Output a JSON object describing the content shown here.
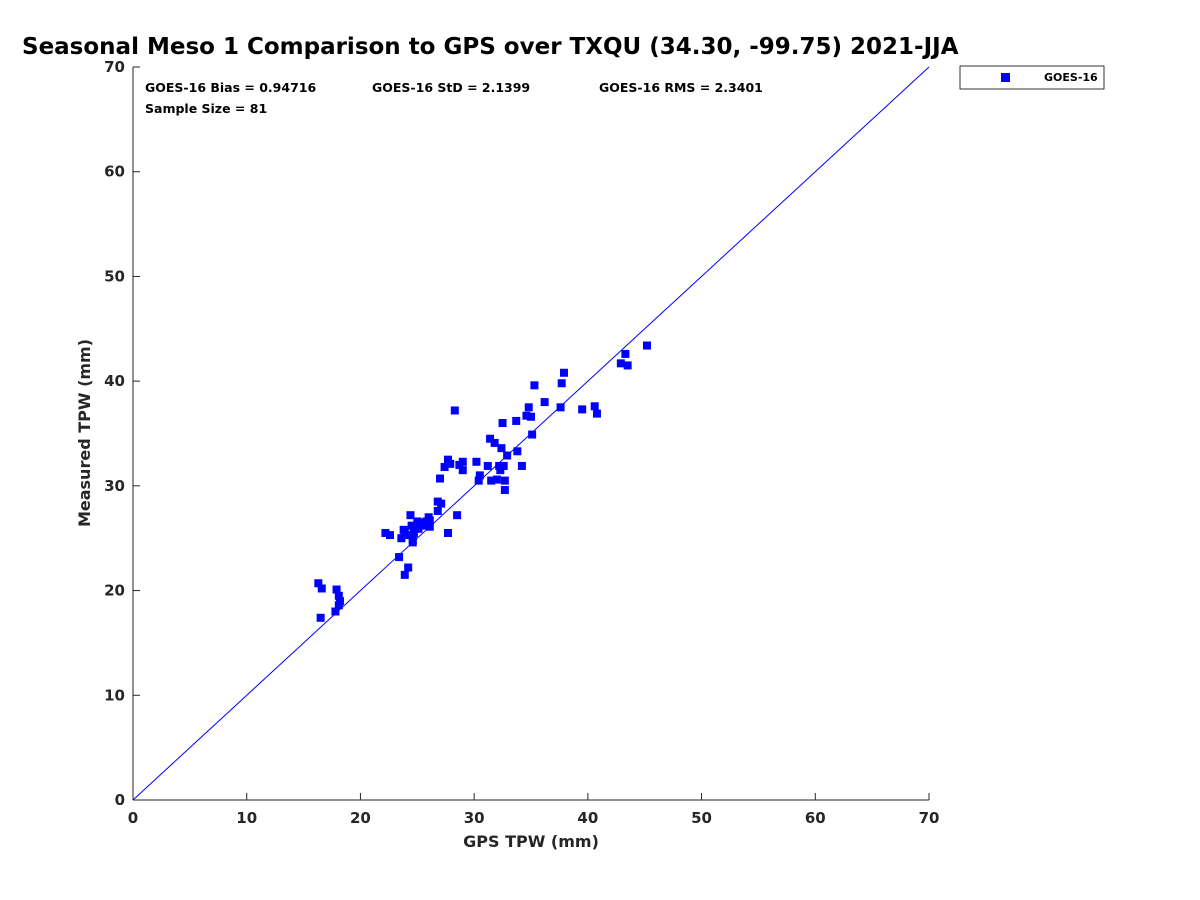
{
  "chart_data": {
    "type": "scatter",
    "title": "Seasonal Meso 1 Comparison to GPS over TXQU (34.30, -99.75) 2021-JJA",
    "xlabel": "GPS TPW (mm)",
    "ylabel": "Measured TPW (mm)",
    "xlim": [
      0,
      70
    ],
    "ylim": [
      0,
      70
    ],
    "xticks": [
      0,
      10,
      20,
      30,
      40,
      50,
      60,
      70
    ],
    "yticks": [
      0,
      10,
      20,
      30,
      40,
      50,
      60,
      70
    ],
    "grid": false,
    "legend": {
      "placement": "outside-top-right",
      "entries": [
        "GOES-16"
      ]
    },
    "stats": {
      "bias": "GOES-16 Bias = 0.94716",
      "std": "GOES-16 StD = 2.1399",
      "rms": "GOES-16 RMS = 2.3401",
      "sample_size": "Sample Size = 81"
    },
    "reference_line": {
      "from": [
        0,
        0
      ],
      "to": [
        70,
        70
      ],
      "color": "#0000ff"
    },
    "series": [
      {
        "name": "GOES-16",
        "color": "#0000ff",
        "marker": "square",
        "x": [
          16.3,
          16.5,
          16.6,
          17.8,
          17.9,
          18.1,
          18.2,
          18.1,
          22.2,
          22.6,
          23.4,
          23.6,
          23.8,
          23.9,
          24.2,
          24.3,
          24.4,
          24.5,
          24.6,
          24.7,
          24.8,
          25.0,
          25.1,
          25.4,
          25.6,
          25.8,
          26.0,
          26.1,
          26.0,
          26.8,
          26.8,
          27.0,
          27.1,
          27.4,
          27.7,
          27.7,
          27.9,
          28.3,
          28.5,
          28.7,
          29.0,
          29.0,
          30.2,
          30.4,
          30.5,
          31.2,
          31.4,
          31.5,
          31.8,
          32.0,
          32.2,
          32.3,
          32.4,
          32.5,
          32.6,
          32.7,
          32.7,
          32.9,
          33.7,
          33.8,
          34.2,
          34.6,
          34.8,
          35.0,
          35.1,
          35.3,
          36.2,
          37.6,
          37.7,
          37.9,
          39.5,
          40.6,
          40.8,
          42.9,
          43.3,
          43.5,
          45.2,
          23.9,
          24.6,
          25.2,
          26.1
        ],
        "y": [
          20.7,
          17.4,
          20.2,
          18.0,
          20.1,
          19.5,
          19.0,
          18.6,
          25.5,
          25.3,
          23.2,
          25.0,
          25.8,
          21.5,
          22.2,
          25.3,
          27.2,
          26.2,
          24.6,
          25.5,
          26.1,
          26.6,
          25.9,
          26.5,
          26.2,
          26.6,
          27.0,
          26.1,
          26.3,
          28.5,
          27.6,
          30.7,
          28.3,
          31.8,
          32.5,
          25.5,
          32.1,
          37.2,
          27.2,
          32.0,
          31.5,
          32.3,
          32.3,
          30.5,
          31.0,
          31.9,
          34.5,
          30.5,
          34.1,
          30.6,
          31.9,
          31.5,
          33.6,
          36.0,
          31.9,
          29.6,
          30.5,
          32.9,
          36.2,
          33.3,
          31.9,
          36.7,
          37.5,
          36.6,
          34.9,
          39.6,
          38.0,
          37.5,
          39.8,
          40.8,
          37.3,
          37.6,
          36.9,
          41.7,
          42.6,
          41.5,
          43.4,
          25.6,
          24.8,
          26.3,
          26.7
        ]
      }
    ]
  }
}
